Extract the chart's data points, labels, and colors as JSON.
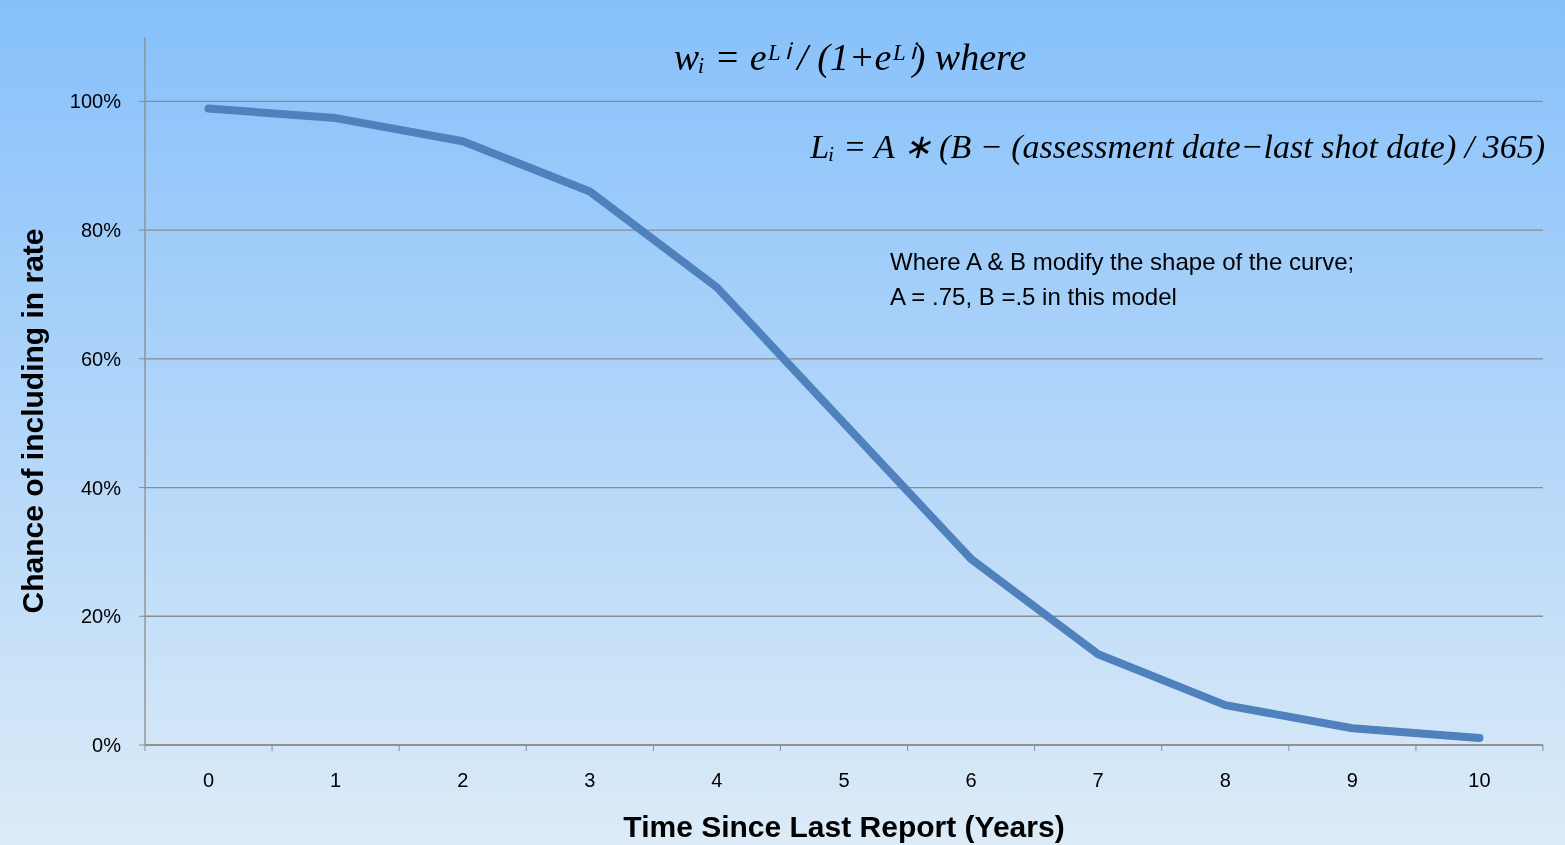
{
  "chart_data": {
    "type": "line",
    "xlabel": "Time Since Last Report (Years)",
    "ylabel": "Chance of including in rate",
    "categories": [
      "0",
      "1",
      "2",
      "3",
      "4",
      "5",
      "6",
      "7",
      "8",
      "9",
      "10"
    ],
    "series": [
      {
        "color": "#4f81bd",
        "values": [
          98.9,
          97.4,
          93.8,
          86.0,
          71.1,
          50.0,
          28.9,
          14.1,
          6.2,
          2.6,
          1.1
        ]
      }
    ],
    "ylim": [
      0,
      110
    ],
    "yticks": [
      {
        "value": 0,
        "label": "0%"
      },
      {
        "value": 20,
        "label": "20%"
      },
      {
        "value": 40,
        "label": "40%"
      },
      {
        "value": 60,
        "label": "60%"
      },
      {
        "value": 80,
        "label": "80%"
      },
      {
        "value": 100,
        "label": "100%"
      }
    ],
    "grid": "y",
    "marker": "none",
    "line_style": "solid",
    "annotations": [
      "wᵢ = eᴸⁱ / (1+eᴸⁱ)   where",
      "Lᵢ = A ∗ (B − (assessment date−last shot date) / 365)",
      "Where A & B modify the shape of the curve;\nA = .75, B =.5 in this model"
    ]
  }
}
